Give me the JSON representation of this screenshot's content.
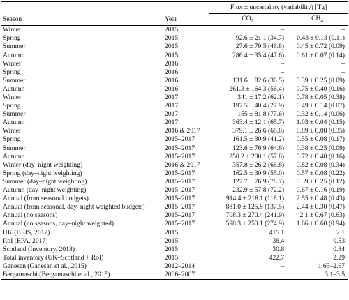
{
  "header": {
    "flux_title": "Flux ± uncertainty (variability) [Tg]",
    "season": "Season",
    "year": "Year",
    "co2": "CO2",
    "ch4": "CH4"
  },
  "rows": [
    {
      "season": "Winter",
      "year": "2015",
      "co2": "–",
      "ch4": "–"
    },
    {
      "season": "Spring",
      "year": "2015",
      "co2": "92.6 ± 21.1 (34.7)",
      "ch4": "0.43 ± 0.13 (0.11)"
    },
    {
      "season": "Summer",
      "year": "2015",
      "co2": "27.6 ± 79.5 (46.8)",
      "ch4": "0.45 ± 0.72 (0.09)"
    },
    {
      "season": "Autumn",
      "year": "2015",
      "co2": "286.4 ± 35.4 (47.6)",
      "ch4": "0.61 ± 0.07 (0.14)"
    },
    {
      "season": "Winter",
      "year": "2016",
      "co2": "–",
      "ch4": "–"
    },
    {
      "season": "Spring",
      "year": "2016",
      "co2": "–",
      "ch4": "–"
    },
    {
      "season": "Summer",
      "year": "2016",
      "co2": "131.6 ± 82.6 (36.5)",
      "ch4": "0.39 ± 0.25 (0.09)"
    },
    {
      "season": "Autumn",
      "year": "2016",
      "co2": "261.3 ± 164.3 (56.4)",
      "ch4": "0.75 ± 0.40 (0.16)"
    },
    {
      "season": "Winter",
      "year": "2017",
      "co2": "341 ± 17.2 (62.1)",
      "ch4": "0.78 ± 0.05 (0.38)"
    },
    {
      "season": "Spring",
      "year": "2017",
      "co2": "197.5 ± 40.4 (27.9)",
      "ch4": "0.49 ± 0.14 (0.07)"
    },
    {
      "season": "Summer",
      "year": "2017",
      "co2": "155 ± 81.8 (77.6)",
      "ch4": "0.32 ± 0.14 (0.06)"
    },
    {
      "season": "Autumn",
      "year": "2017",
      "co2": "363.4 ± 12.1 (65.7)",
      "ch4": "1.03 ± 0.04 (0.15)"
    },
    {
      "season": "Winter",
      "year": "2016 & 2017",
      "co2": "379.1 ± 26.6 (68.8)",
      "ch4": "0.89 ± 0.08 (0.35)"
    },
    {
      "season": "Spring",
      "year": "2015–2017",
      "co2": "161.5 ± 30.9 (41.2)",
      "ch4": "0.55 ± 0.08 (0.17)"
    },
    {
      "season": "Summer",
      "year": "2015–2017",
      "co2": "123.6 ± 76.9 (64.6)",
      "ch4": "0.38 ± 0.25 (0.09)"
    },
    {
      "season": "Autumn",
      "year": "2015–2017",
      "co2": "250.2 ± 200.1 (57.8)",
      "ch4": "0.72 ± 0.40 (0.16)"
    },
    {
      "season": "Winter (day–night weighting)",
      "year": "2016 & 2017",
      "co2": "357.8 ± 26.2 (66.8)",
      "ch4": "0.82 ± 0.08 (0.34)"
    },
    {
      "season": "Spring (day–night weighting)",
      "year": "2015–2017",
      "co2": "162.5 ± 30.9 (55.0)",
      "ch4": "0.57 ± 0.08 (0.22)"
    },
    {
      "season": "Summer (day–night weighting)",
      "year": "2015–2017",
      "co2": "127.7 ± 76.9 (78.7)",
      "ch4": "0.39 ± 0.25 (0.12)"
    },
    {
      "season": "Autumn (day–night weighting)",
      "year": "2015–2017",
      "co2": "232.9 ± 57.8 (72.2)",
      "ch4": "0.67 ± 0.16 (0.19)"
    },
    {
      "season": "Annual (from seasonal budgets)",
      "year": "2015–2017",
      "co2": "914.4 ± 218.1 (118.1)",
      "ch4": "2.55 ± 0.48 (0.43)"
    },
    {
      "season": "Annual (from seasonal, day–night weighted budgets)",
      "year": "2015–2017",
      "co2": "881.0 ± 125.8 (137.5)",
      "ch4": "2.44 ± 0.30 (0.47)"
    },
    {
      "season": "Annual (no seasons)",
      "year": "2015–2017",
      "co2": "708.3 ± 270.4 (241.9)",
      "ch4": "2.1 ± 0.67 (0.63)"
    },
    {
      "season": "Annual (no seasons, day–night weighted)",
      "year": "2015–2017",
      "co2": "598.3 ± 250.1 (274.9)",
      "ch4": "1.66 ± 0.60 (0.94)"
    },
    {
      "season": "UK (BEIS, 2017)",
      "year": "2015",
      "co2": "415.1",
      "ch4": "2.1"
    },
    {
      "season": "RoI (EPA, 2017)",
      "year": "2015",
      "co2": "38.4",
      "ch4": "0.53"
    },
    {
      "season": "Scotland (Inventory, 2018)",
      "year": "2015",
      "co2": "30.8",
      "ch4": "0.34"
    },
    {
      "season": "Total inventory (UK–Scotland + RoI)",
      "year": "2015",
      "co2": "422.7",
      "ch4": "2.29"
    },
    {
      "season": "Ganesan (Ganesan et al., 2015)",
      "year": "2012–2014",
      "co2": "–",
      "ch4": "1.65–2.67"
    },
    {
      "season": "Bergamaschi (Bergamaschi et al., 2015)",
      "year": "2006–2007",
      "co2": "",
      "ch4": "3.1–3.5"
    }
  ]
}
